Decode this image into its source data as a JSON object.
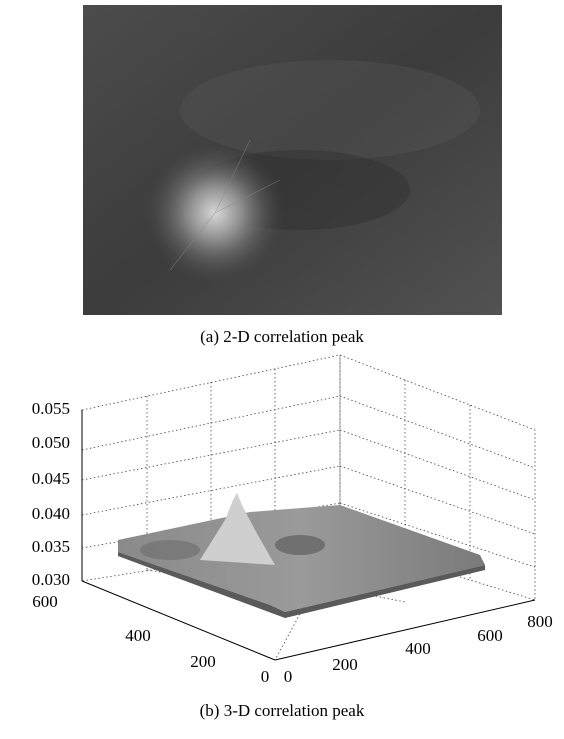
{
  "panel_a": {
    "caption": "(a) 2-D correlation peak"
  },
  "panel_b": {
    "caption": "(b) 3-D correlation peak",
    "z_ticks": [
      "0.030",
      "0.035",
      "0.040",
      "0.045",
      "0.050",
      "0.055"
    ],
    "y_ticks": [
      "0",
      "200",
      "400",
      "600"
    ],
    "x_ticks": [
      "0",
      "200",
      "400",
      "600",
      "800"
    ]
  }
}
